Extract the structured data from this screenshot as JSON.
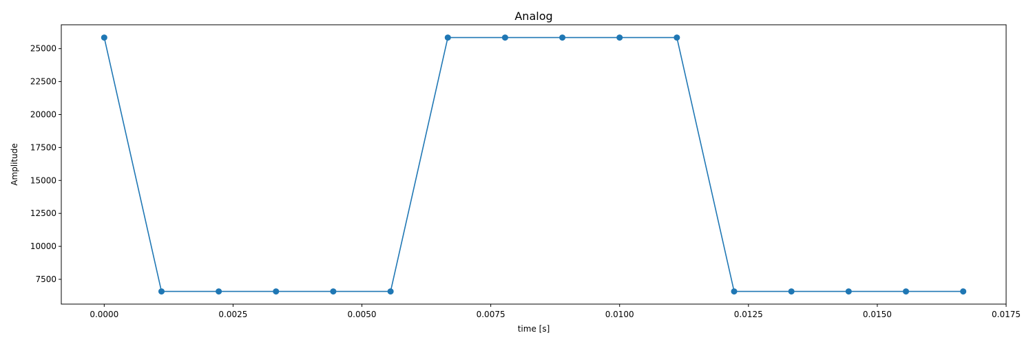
{
  "chart_data": {
    "type": "line",
    "title": "Analog",
    "xlabel": "time [s]",
    "ylabel": "Amplitude",
    "xlim": [
      -0.000833,
      0.0175
    ],
    "ylim": [
      5620,
      26810
    ],
    "xticks": [
      0.0,
      0.0025,
      0.005,
      0.0075,
      0.01,
      0.0125,
      0.015,
      0.0175
    ],
    "xtick_labels": [
      "0.0000",
      "0.0025",
      "0.0050",
      "0.0075",
      "0.0100",
      "0.0125",
      "0.0150",
      "0.0175"
    ],
    "yticks": [
      7500,
      10000,
      12500,
      15000,
      17500,
      20000,
      22500,
      25000
    ],
    "ytick_labels": [
      "7500",
      "10000",
      "12500",
      "15000",
      "17500",
      "20000",
      "22500",
      "25000"
    ],
    "grid": false,
    "legend": false,
    "series": [
      {
        "color": "#1f77b4",
        "marker": "circle",
        "x": [
          0.0,
          0.001111,
          0.002222,
          0.003333,
          0.004444,
          0.005556,
          0.006667,
          0.007778,
          0.008889,
          0.01,
          0.011111,
          0.012222,
          0.013333,
          0.014444,
          0.015556,
          0.016667
        ],
        "y": [
          25840,
          6580,
          6580,
          6580,
          6580,
          6580,
          25840,
          25840,
          25840,
          25840,
          25840,
          6580,
          6580,
          6580,
          6580,
          6580
        ]
      }
    ]
  }
}
